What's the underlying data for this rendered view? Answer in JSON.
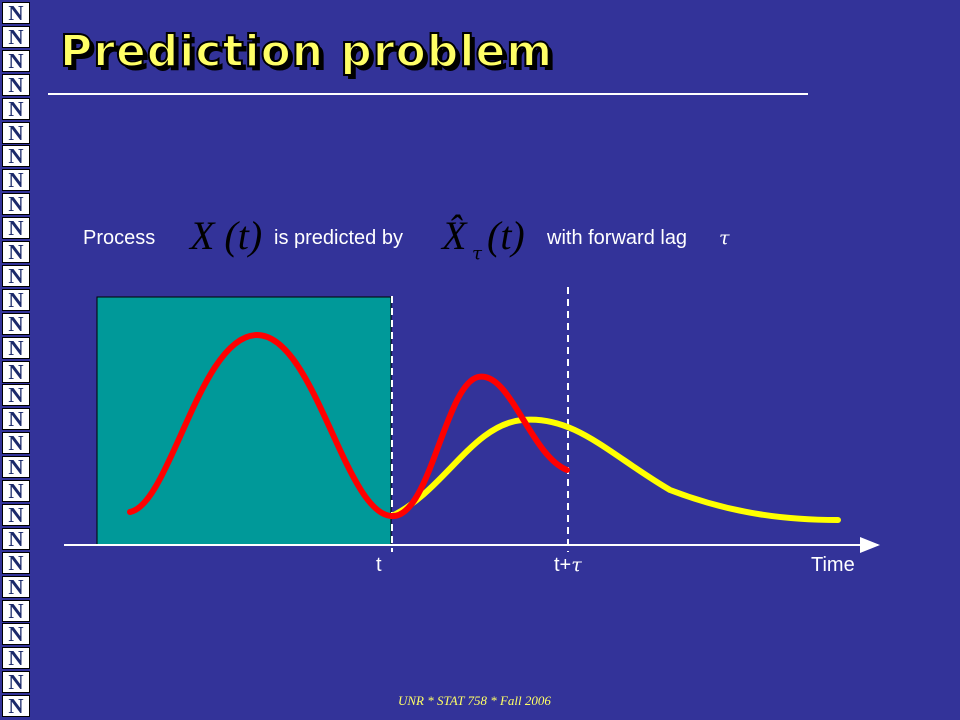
{
  "slide": {
    "title": "Prediction problem",
    "footer": "UNR * STAT 758 * Fall 2006",
    "logo_letter": "N"
  },
  "sentence": {
    "process_label": "Process",
    "process_symbol": "X (t)",
    "predicted_label": "is predicted by",
    "predictor_symbol": "X̂",
    "predictor_subscript": "τ",
    "predictor_arg": "(t)",
    "lag_label": "with forward lag",
    "lag_symbol": "τ"
  },
  "axis": {
    "t_label": "t",
    "t_plus_tau_prefix": "t+",
    "t_plus_tau_symbol": "τ",
    "time_label": "Time"
  },
  "colors": {
    "background": "#333399",
    "title": "#ffff66",
    "observed_region": "#009999",
    "process_curve": "#ff0000",
    "prediction_curve": "#ffff00",
    "axis": "#ffffff"
  }
}
